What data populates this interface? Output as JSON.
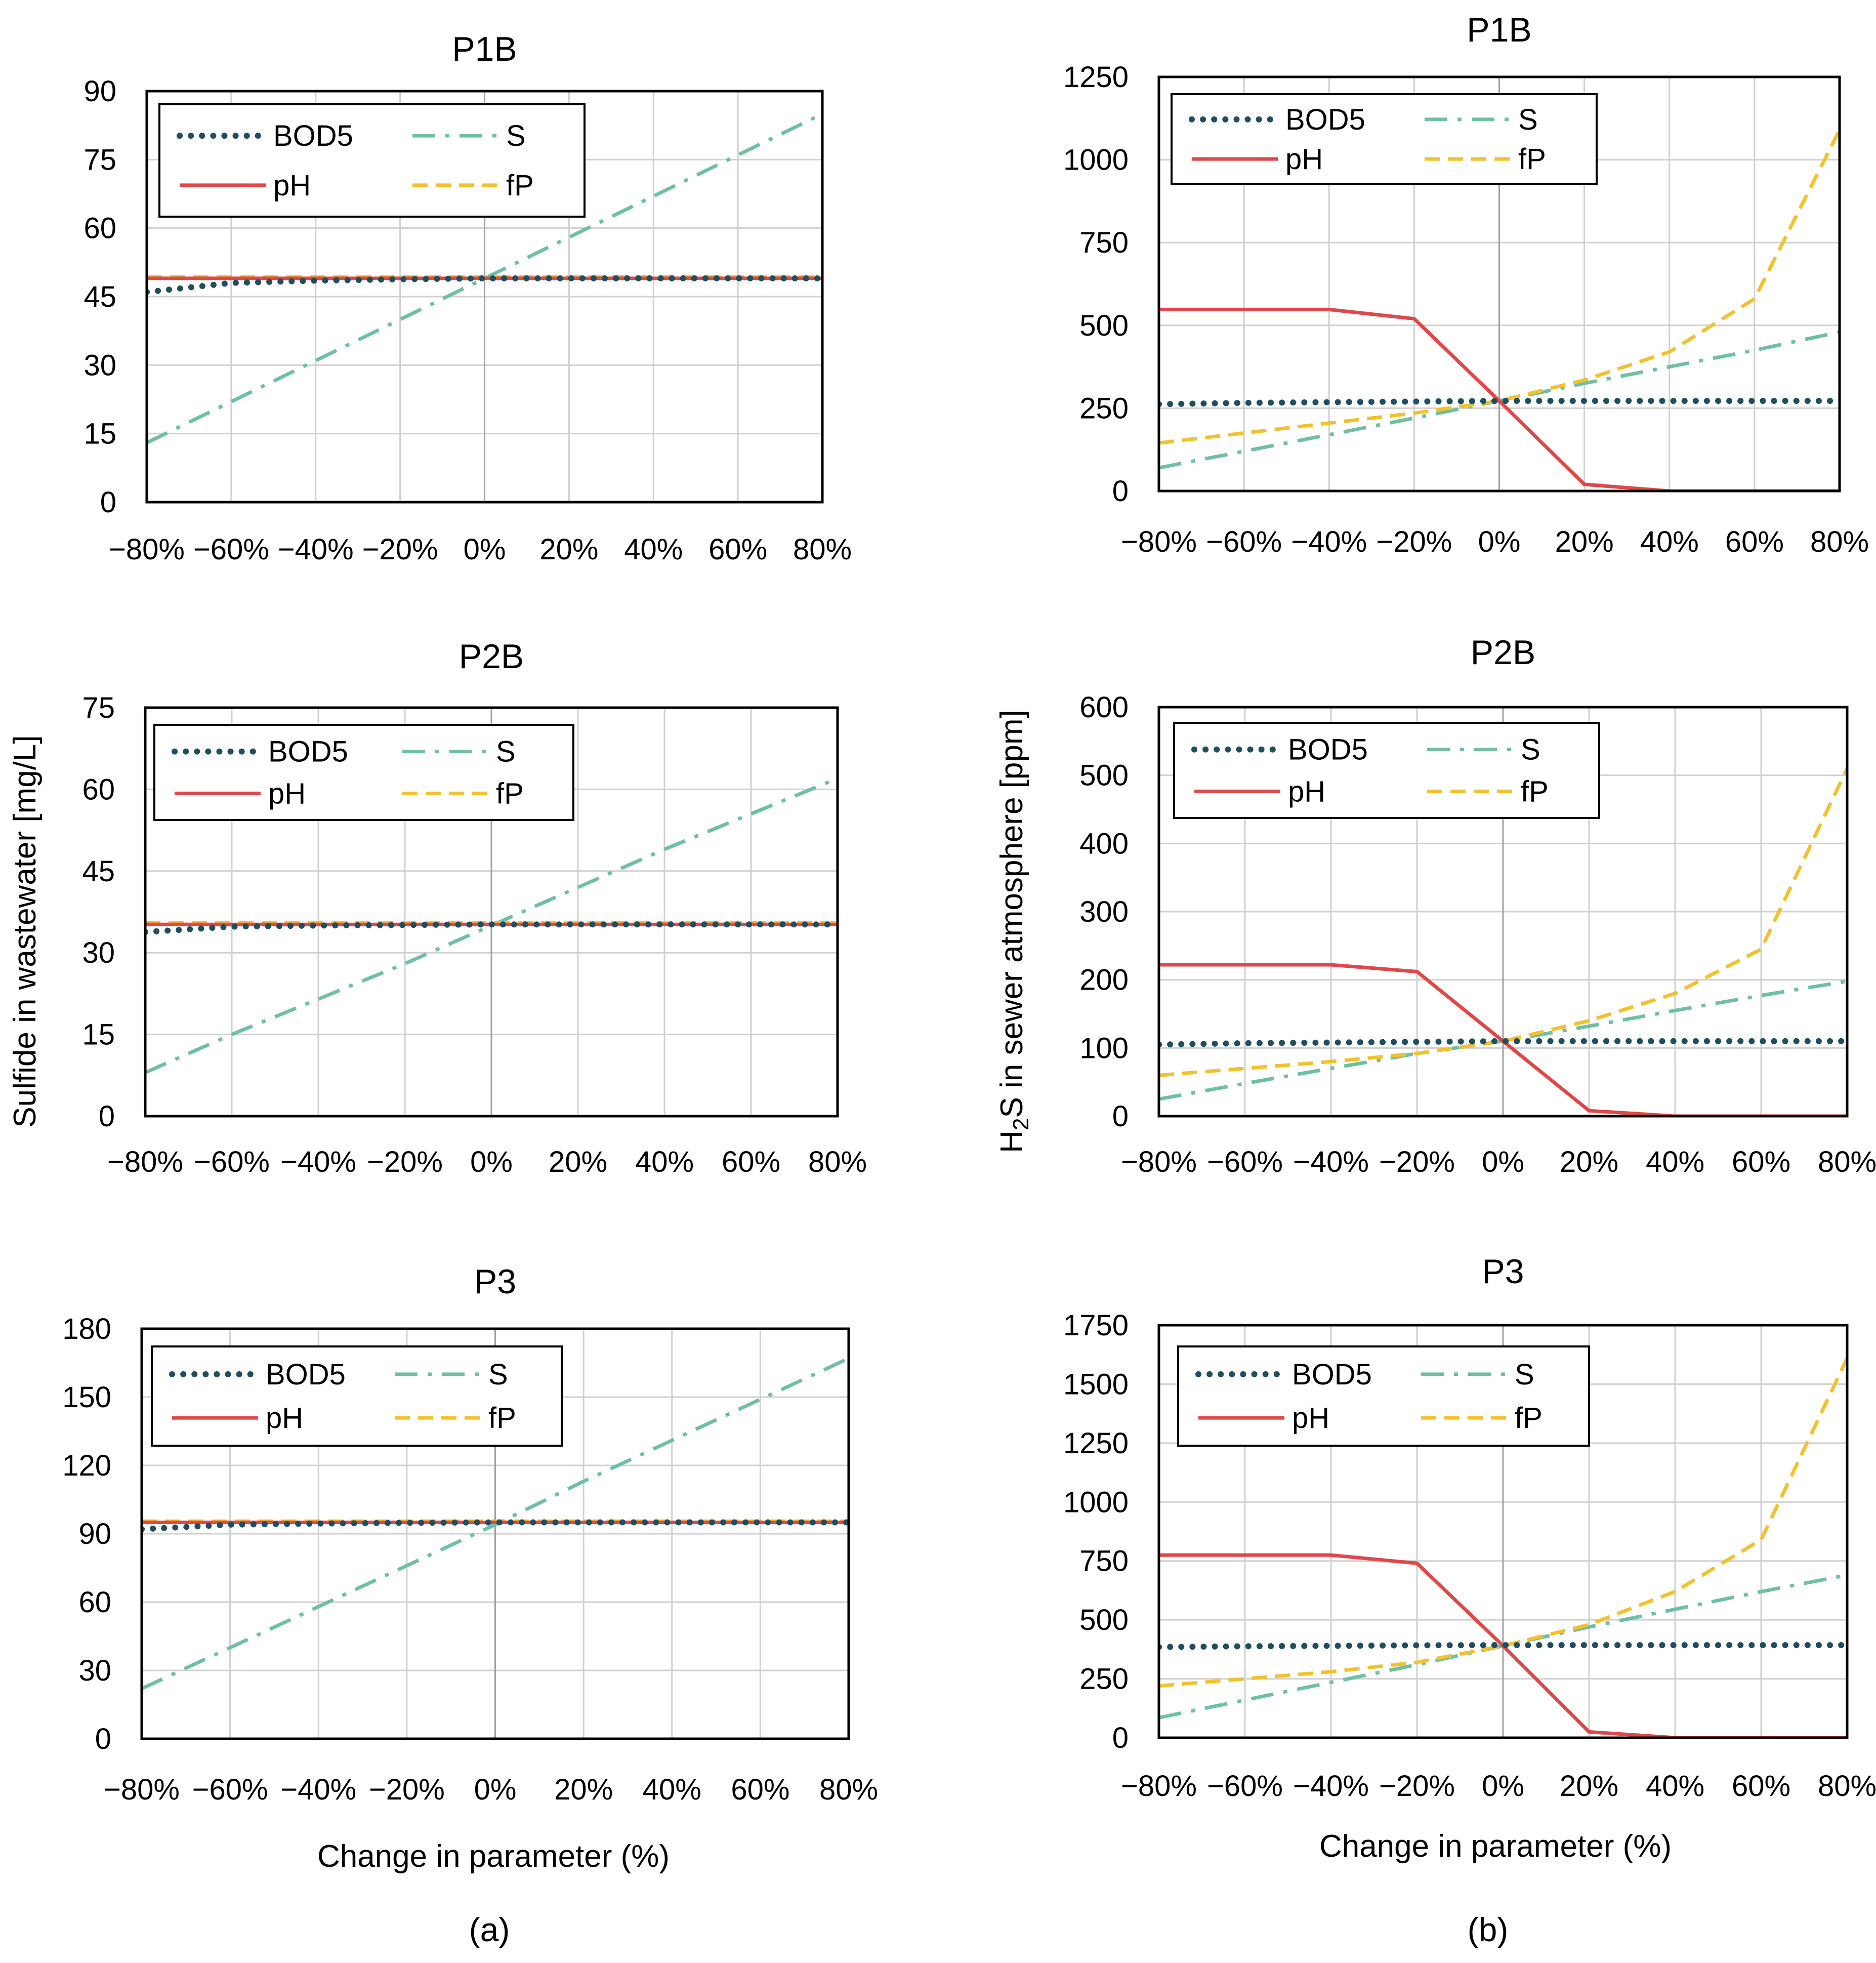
{
  "figure": {
    "left_ylabel": "Sulfide in wastewater [mg/L]",
    "right_ylabel_prefix": "H",
    "right_ylabel_sub": "2",
    "right_ylabel_suffix": "S in sewer atmosphere [ppm]",
    "xlabel": "Change in parameter (%)",
    "panel_a": "(a)",
    "panel_b": "(b)"
  },
  "colors": {
    "BOD5": "#1f4e5f",
    "S": "#6fc0a0",
    "pH": "#e04848",
    "fP": "#f2c12e",
    "grid": "#d0d0d0",
    "zero": "#a0a0a0"
  },
  "chart_data": [
    {
      "type": "line",
      "panel": "a",
      "title": "P1B",
      "ylim": [
        0,
        90
      ],
      "yticks": [
        0,
        15,
        30,
        45,
        60,
        75,
        90
      ],
      "x": [
        -80,
        -60,
        -40,
        -20,
        0,
        20,
        40,
        60,
        80
      ],
      "xtick_labels": [
        "−80%",
        "−60%",
        "−40%",
        "−20%",
        "0%",
        "20%",
        "40%",
        "60%",
        "80%"
      ],
      "legend": "top-left",
      "grid": true,
      "series": [
        {
          "name": "BOD5",
          "values": [
            46,
            48,
            48.5,
            48.8,
            49,
            49,
            49,
            49,
            49
          ]
        },
        {
          "name": "S",
          "values": [
            13,
            22,
            31,
            40,
            49,
            58,
            67,
            76,
            85
          ]
        },
        {
          "name": "pH",
          "values": [
            49,
            49,
            49,
            49,
            49,
            49,
            49,
            49,
            49
          ]
        },
        {
          "name": "fP",
          "values": [
            49.3,
            49.3,
            49.3,
            49.3,
            49.3,
            49.3,
            49.3,
            49.3,
            49.3
          ]
        }
      ]
    },
    {
      "type": "line",
      "panel": "b",
      "title": "P1B",
      "ylim": [
        0,
        1250
      ],
      "yticks": [
        0,
        250,
        500,
        750,
        1000,
        1250
      ],
      "x": [
        -80,
        -60,
        -40,
        -20,
        0,
        20,
        40,
        60,
        80
      ],
      "xtick_labels": [
        "−80%",
        "−60%",
        "−40%",
        "−20%",
        "0%",
        "20%",
        "40%",
        "60%",
        "80%"
      ],
      "legend": "top-left",
      "grid": true,
      "series": [
        {
          "name": "BOD5",
          "values": [
            262,
            266,
            268,
            270,
            272,
            272,
            272,
            272,
            272
          ]
        },
        {
          "name": "S",
          "values": [
            70,
            120,
            170,
            220,
            272,
            325,
            375,
            425,
            480
          ]
        },
        {
          "name": "pH",
          "values": [
            548,
            548,
            548,
            520,
            272,
            20,
            0,
            0,
            0
          ]
        },
        {
          "name": "fP",
          "values": [
            145,
            175,
            205,
            235,
            272,
            335,
            420,
            580,
            1090
          ]
        }
      ]
    },
    {
      "type": "line",
      "panel": "a",
      "title": "P2B",
      "ylim": [
        0,
        75
      ],
      "yticks": [
        0,
        15,
        30,
        45,
        60,
        75
      ],
      "x": [
        -80,
        -60,
        -40,
        -20,
        0,
        20,
        40,
        60,
        80
      ],
      "xtick_labels": [
        "−80%",
        "−60%",
        "−40%",
        "−20%",
        "0%",
        "20%",
        "40%",
        "60%",
        "80%"
      ],
      "legend": "top-left",
      "grid": true,
      "series": [
        {
          "name": "BOD5",
          "values": [
            33.8,
            34.8,
            35,
            35.1,
            35.2,
            35.2,
            35.2,
            35.2,
            35.2
          ]
        },
        {
          "name": "S",
          "values": [
            8,
            15,
            21.5,
            28,
            35,
            42,
            49,
            55.5,
            62
          ]
        },
        {
          "name": "pH",
          "values": [
            35.2,
            35.2,
            35.2,
            35.2,
            35.2,
            35.2,
            35.2,
            35.2,
            35.2
          ]
        },
        {
          "name": "fP",
          "values": [
            35.5,
            35.5,
            35.5,
            35.5,
            35.5,
            35.5,
            35.5,
            35.5,
            35.5
          ]
        }
      ]
    },
    {
      "type": "line",
      "panel": "b",
      "title": "P2B",
      "ylim": [
        0,
        600
      ],
      "yticks": [
        0,
        100,
        200,
        300,
        400,
        500,
        600
      ],
      "x": [
        -80,
        -60,
        -40,
        -20,
        0,
        20,
        40,
        60,
        80
      ],
      "xtick_labels": [
        "−80%",
        "−60%",
        "−40%",
        "−20%",
        "0%",
        "20%",
        "40%",
        "60%",
        "80%"
      ],
      "legend": "top-left",
      "grid": true,
      "series": [
        {
          "name": "BOD5",
          "values": [
            105,
            107,
            108,
            109,
            110,
            110,
            110,
            110,
            110
          ]
        },
        {
          "name": "S",
          "values": [
            25,
            48,
            70,
            92,
            110,
            132,
            155,
            177,
            198
          ]
        },
        {
          "name": "pH",
          "values": [
            222,
            222,
            222,
            212,
            110,
            8,
            0,
            0,
            0
          ]
        },
        {
          "name": "fP",
          "values": [
            60,
            70,
            80,
            92,
            110,
            140,
            180,
            245,
            510
          ]
        }
      ]
    },
    {
      "type": "line",
      "panel": "a",
      "title": "P3",
      "ylim": [
        0,
        180
      ],
      "yticks": [
        0,
        30,
        60,
        90,
        120,
        150,
        180
      ],
      "x": [
        -80,
        -60,
        -40,
        -20,
        0,
        20,
        40,
        60,
        80
      ],
      "xtick_labels": [
        "−80%",
        "−60%",
        "−40%",
        "−20%",
        "0%",
        "20%",
        "40%",
        "60%",
        "80%"
      ],
      "legend": "top-left",
      "grid": true,
      "series": [
        {
          "name": "BOD5",
          "values": [
            92,
            94,
            94.5,
            94.8,
            95,
            95,
            95,
            95,
            95
          ]
        },
        {
          "name": "S",
          "values": [
            22,
            40,
            58,
            76,
            94,
            113,
            131,
            149,
            167
          ]
        },
        {
          "name": "pH",
          "values": [
            95,
            95,
            95,
            95,
            95,
            95,
            95,
            95,
            95
          ]
        },
        {
          "name": "fP",
          "values": [
            95.5,
            95.5,
            95.5,
            95.5,
            95.5,
            95.5,
            95.5,
            95.5,
            95.5
          ]
        }
      ]
    },
    {
      "type": "line",
      "panel": "b",
      "title": "P3",
      "ylim": [
        0,
        1750
      ],
      "yticks": [
        0,
        250,
        500,
        750,
        1000,
        1250,
        1500,
        1750
      ],
      "x": [
        -80,
        -60,
        -40,
        -20,
        0,
        20,
        40,
        60,
        80
      ],
      "xtick_labels": [
        "−80%",
        "−60%",
        "−40%",
        "−20%",
        "0%",
        "20%",
        "40%",
        "60%",
        "80%"
      ],
      "legend": "top-left",
      "grid": true,
      "series": [
        {
          "name": "BOD5",
          "values": [
            385,
            388,
            390,
            392,
            393,
            393,
            393,
            393,
            393
          ]
        },
        {
          "name": "S",
          "values": [
            85,
            160,
            235,
            310,
            390,
            470,
            545,
            620,
            690
          ]
        },
        {
          "name": "pH",
          "values": [
            775,
            775,
            775,
            740,
            390,
            25,
            0,
            0,
            0
          ]
        },
        {
          "name": "fP",
          "values": [
            220,
            250,
            280,
            320,
            390,
            480,
            620,
            840,
            1610
          ]
        }
      ]
    }
  ]
}
